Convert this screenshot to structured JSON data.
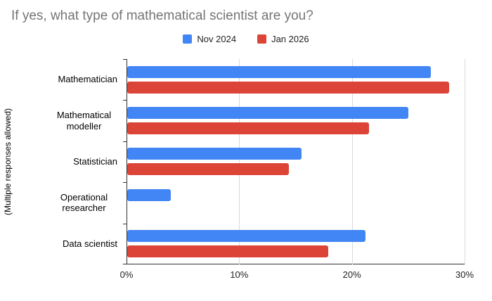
{
  "chart_data": {
    "type": "bar",
    "orientation": "horizontal",
    "title": "If yes, what type of mathematical scientist are you?",
    "xlabel": "",
    "ylabel": "(Multiple responses allowed)",
    "categories": [
      "Mathematician",
      "Mathematical modeller",
      "Statistician",
      "Operational researcher",
      "Data scientist"
    ],
    "series": [
      {
        "name": "Nov 2024",
        "color": "#4285F4",
        "values": [
          27.0,
          25.0,
          15.5,
          3.9,
          21.2
        ]
      },
      {
        "name": "Jan 2026",
        "color": "#DB4437",
        "values": [
          28.6,
          21.5,
          14.4,
          0,
          17.9
        ]
      }
    ],
    "xlim": [
      0,
      30
    ],
    "xticks": [
      "0%",
      "10%",
      "20%",
      "30%"
    ],
    "grid": true,
    "legend_position": "top"
  },
  "colors": {
    "title_text": "#757575",
    "axis": "#333333",
    "gridline": "#d9d9d9",
    "background": "#ffffff"
  }
}
